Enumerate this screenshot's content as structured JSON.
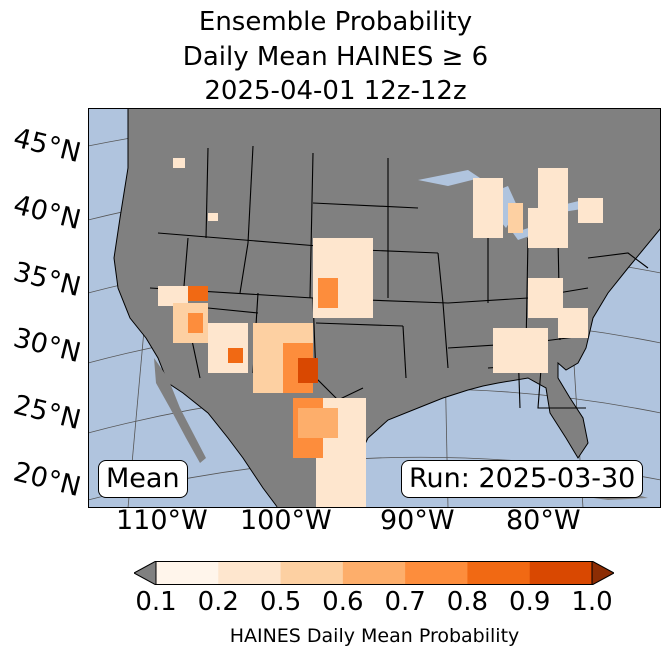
{
  "title": {
    "line1": "Ensemble Probability",
    "line2": "Daily Mean HAINES ≥ 6",
    "line3": "2025-04-01 12z-12z"
  },
  "map": {
    "projection": "Lambert Conformal",
    "ocean_color": "#b0c4de",
    "land_color": "#808080",
    "lat_labels": [
      "45°N",
      "40°N",
      "35°N",
      "30°N",
      "25°N",
      "20°N"
    ],
    "lon_labels": [
      "110°W",
      "100°W",
      "90°W",
      "80°W"
    ]
  },
  "boxes": {
    "mean": "Mean",
    "run": "Run: 2025-03-30"
  },
  "colorbar": {
    "ticks": [
      "0.1",
      "0.2",
      "0.5",
      "0.6",
      "0.7",
      "0.8",
      "0.9",
      "1.0"
    ],
    "colors": [
      "#fff5eb",
      "#fee6ce",
      "#fdd0a2",
      "#fdae6b",
      "#fd8d3c",
      "#f16913",
      "#d94801",
      "#8c2d04"
    ],
    "under_color": "#808080",
    "label": "HAINES Daily Mean Probability"
  }
}
